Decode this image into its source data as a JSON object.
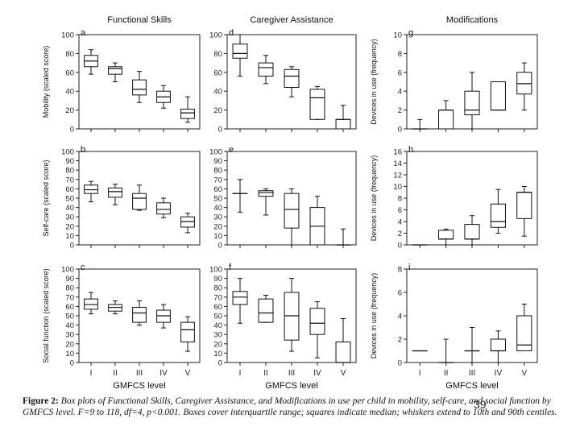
{
  "slide_number": "39",
  "caption": {
    "label": "Figure 2:",
    "text": "Box plots of Functional Skills, Caregiver Assistance, and Modifications in use per child in mobility, self-care, and social function by GMFCS level. F=9 to 118, df=4, p<0.001. Boxes cover interquartile range; squares indicate median; whiskers extend to 10th and 90th centiles."
  },
  "chart_data": [
    {
      "type": "box",
      "panel": "a",
      "title": "Functional Skills",
      "ylabel": "Mobility (scaled score)",
      "xlabel": "",
      "ylim": [
        0,
        100
      ],
      "yticks": [
        0,
        20,
        40,
        60,
        80,
        100
      ],
      "categories": [
        "I",
        "II",
        "III",
        "IV",
        "V"
      ],
      "show_xticklabels": false,
      "boxes": [
        {
          "whisker_low": 58,
          "q1": 66,
          "median": 72,
          "q3": 78,
          "whisker_high": 84
        },
        {
          "whisker_low": 50,
          "q1": 58,
          "median": 64,
          "q3": 66,
          "whisker_high": 70
        },
        {
          "whisker_low": 28,
          "q1": 36,
          "median": 42,
          "q3": 52,
          "whisker_high": 61
        },
        {
          "whisker_low": 22,
          "q1": 28,
          "median": 34,
          "q3": 40,
          "whisker_high": 46
        },
        {
          "whisker_low": 7,
          "q1": 11,
          "median": 17,
          "q3": 21,
          "whisker_high": 34
        }
      ]
    },
    {
      "type": "box",
      "panel": "b",
      "title": "",
      "ylabel": "Self-care (scaled score)",
      "xlabel": "",
      "ylim": [
        0,
        100
      ],
      "yticks": [
        0,
        10,
        20,
        30,
        40,
        50,
        60,
        70,
        80,
        90,
        100
      ],
      "categories": [
        "I",
        "II",
        "III",
        "IV",
        "V"
      ],
      "show_xticklabels": false,
      "boxes": [
        {
          "whisker_low": 46,
          "q1": 55,
          "median": 59,
          "q3": 64,
          "whisker_high": 68
        },
        {
          "whisker_low": 43,
          "q1": 51,
          "median": 57,
          "q3": 61,
          "whisker_high": 65
        },
        {
          "whisker_low": 37,
          "q1": 38,
          "median": 50,
          "q3": 55,
          "whisker_high": 64
        },
        {
          "whisker_low": 29,
          "q1": 33,
          "median": 38,
          "q3": 45,
          "whisker_high": 50
        },
        {
          "whisker_low": 13,
          "q1": 19,
          "median": 25,
          "q3": 30,
          "whisker_high": 34
        }
      ]
    },
    {
      "type": "box",
      "panel": "c",
      "title": "",
      "ylabel": "Social function (scaled score)",
      "xlabel": "GMFCS level",
      "ylim": [
        0,
        100
      ],
      "yticks": [
        0,
        10,
        20,
        30,
        40,
        50,
        60,
        70,
        80,
        90,
        100
      ],
      "categories": [
        "I",
        "II",
        "III",
        "IV",
        "V"
      ],
      "show_xticklabels": true,
      "boxes": [
        {
          "whisker_low": 52,
          "q1": 57,
          "median": 62,
          "q3": 68,
          "whisker_high": 75
        },
        {
          "whisker_low": 52,
          "q1": 55,
          "median": 59,
          "q3": 62,
          "whisker_high": 66
        },
        {
          "whisker_low": 40,
          "q1": 43,
          "median": 53,
          "q3": 59,
          "whisker_high": 66
        },
        {
          "whisker_low": 37,
          "q1": 43,
          "median": 50,
          "q3": 56,
          "whisker_high": 62
        },
        {
          "whisker_low": 12,
          "q1": 22,
          "median": 35,
          "q3": 43,
          "whisker_high": 49
        }
      ]
    },
    {
      "type": "box",
      "panel": "d",
      "title": "Caregiver Assistance",
      "ylabel": "",
      "xlabel": "",
      "ylim": [
        0,
        100
      ],
      "yticks": [
        0,
        20,
        40,
        60,
        80,
        100
      ],
      "categories": [
        "I",
        "II",
        "III",
        "IV",
        "V"
      ],
      "show_xticklabels": false,
      "boxes": [
        {
          "whisker_low": 56,
          "q1": 75,
          "median": 80,
          "q3": 90,
          "whisker_high": 100
        },
        {
          "whisker_low": 48,
          "q1": 56,
          "median": 65,
          "q3": 70,
          "whisker_high": 78
        },
        {
          "whisker_low": 34,
          "q1": 44,
          "median": 56,
          "q3": 63,
          "whisker_high": 66
        },
        {
          "whisker_low": 10,
          "q1": 10,
          "median": 33,
          "q3": 42,
          "whisker_high": 45
        },
        {
          "whisker_low": 0,
          "q1": 0,
          "median": 10,
          "q3": 10,
          "whisker_high": 25
        }
      ]
    },
    {
      "type": "box",
      "panel": "e",
      "title": "",
      "ylabel": "",
      "xlabel": "",
      "ylim": [
        0,
        100
      ],
      "yticks": [
        0,
        10,
        20,
        30,
        40,
        50,
        60,
        70,
        80,
        90,
        100
      ],
      "categories": [
        "I",
        "II",
        "III",
        "IV",
        "V"
      ],
      "show_xticklabels": false,
      "boxes": [
        {
          "whisker_low": 35,
          "q1": 55,
          "median": 55,
          "q3": 55,
          "whisker_high": 70
        },
        {
          "whisker_low": 32,
          "q1": 52,
          "median": 56,
          "q3": 58,
          "whisker_high": 60
        },
        {
          "whisker_low": 0,
          "q1": 18,
          "median": 38,
          "q3": 55,
          "whisker_high": 60
        },
        {
          "whisker_low": 0,
          "q1": 0,
          "median": 20,
          "q3": 40,
          "whisker_high": 52
        },
        {
          "whisker_low": 0,
          "q1": 0,
          "median": 0,
          "q3": 0,
          "whisker_high": 17
        }
      ]
    },
    {
      "type": "box",
      "panel": "f",
      "title": "",
      "ylabel": "",
      "xlabel": "GMFCS level",
      "ylim": [
        0,
        100
      ],
      "yticks": [
        0,
        10,
        20,
        30,
        40,
        50,
        60,
        70,
        80,
        90,
        100
      ],
      "categories": [
        "I",
        "II",
        "III",
        "IV",
        "V"
      ],
      "show_xticklabels": true,
      "boxes": [
        {
          "whisker_low": 42,
          "q1": 62,
          "median": 70,
          "q3": 76,
          "whisker_high": 90
        },
        {
          "whisker_low": 43,
          "q1": 43,
          "median": 53,
          "q3": 68,
          "whisker_high": 72
        },
        {
          "whisker_low": 12,
          "q1": 24,
          "median": 50,
          "q3": 75,
          "whisker_high": 90
        },
        {
          "whisker_low": 5,
          "q1": 30,
          "median": 42,
          "q3": 58,
          "whisker_high": 65
        },
        {
          "whisker_low": 0,
          "q1": 0,
          "median": 0,
          "q3": 22,
          "whisker_high": 47
        }
      ]
    },
    {
      "type": "box",
      "panel": "g",
      "title": "Modifications",
      "ylabel": "Devices in use (frequency)",
      "xlabel": "",
      "ylim": [
        0,
        10
      ],
      "yticks": [
        0,
        2,
        4,
        6,
        8,
        10
      ],
      "categories": [
        "I",
        "II",
        "III",
        "IV",
        "V"
      ],
      "show_xticklabels": false,
      "boxes": [
        {
          "whisker_low": 0,
          "q1": 0,
          "median": 0,
          "q3": 0,
          "whisker_high": 1
        },
        {
          "whisker_low": 0,
          "q1": 0,
          "median": 2,
          "q3": 2,
          "whisker_high": 3
        },
        {
          "whisker_low": 0,
          "q1": 1.5,
          "median": 2,
          "q3": 4,
          "whisker_high": 6
        },
        {
          "whisker_low": 2,
          "q1": 2,
          "median": 2,
          "q3": 5,
          "whisker_high": 5
        },
        {
          "whisker_low": 2,
          "q1": 3.7,
          "median": 4.8,
          "q3": 6,
          "whisker_high": 7
        }
      ]
    },
    {
      "type": "box",
      "panel": "h",
      "title": "",
      "ylabel": "Devices in use (frequency)",
      "xlabel": "",
      "ylim": [
        0,
        16
      ],
      "yticks": [
        0,
        2,
        4,
        6,
        8,
        10,
        12,
        14,
        16
      ],
      "categories": [
        "I",
        "II",
        "III",
        "IV",
        "V"
      ],
      "show_xticklabels": false,
      "boxes": [
        {
          "whisker_low": 0,
          "q1": 0,
          "median": 0,
          "q3": 0,
          "whisker_high": 0
        },
        {
          "whisker_low": 0,
          "q1": 1,
          "median": 1,
          "q3": 2.5,
          "whisker_high": 2.7
        },
        {
          "whisker_low": 0,
          "q1": 1,
          "median": 1,
          "q3": 3.5,
          "whisker_high": 5
        },
        {
          "whisker_low": 2,
          "q1": 3,
          "median": 4,
          "q3": 7,
          "whisker_high": 9.5
        },
        {
          "whisker_low": 1.5,
          "q1": 4.5,
          "median": 9,
          "q3": 9,
          "whisker_high": 10
        }
      ]
    },
    {
      "type": "box",
      "panel": "i",
      "title": "",
      "ylabel": "Devices in use (frequency)",
      "xlabel": "GMFCS level",
      "ylim": [
        0,
        8
      ],
      "yticks": [
        0,
        2,
        4,
        6,
        8
      ],
      "categories": [
        "I",
        "II",
        "III",
        "IV",
        "V"
      ],
      "show_xticklabels": true,
      "boxes": [
        {
          "whisker_low": 1,
          "q1": 1,
          "median": 1,
          "q3": 1,
          "whisker_high": 1
        },
        {
          "whisker_low": 0,
          "q1": 0,
          "median": 0,
          "q3": 0,
          "whisker_high": 2
        },
        {
          "whisker_low": 0,
          "q1": 1,
          "median": 1,
          "q3": 1,
          "whisker_high": 3
        },
        {
          "whisker_low": 0,
          "q1": 1,
          "median": 1,
          "q3": 2,
          "whisker_high": 2.7
        },
        {
          "whisker_low": 1,
          "q1": 1,
          "median": 1.5,
          "q3": 4,
          "whisker_high": 5
        }
      ]
    }
  ]
}
